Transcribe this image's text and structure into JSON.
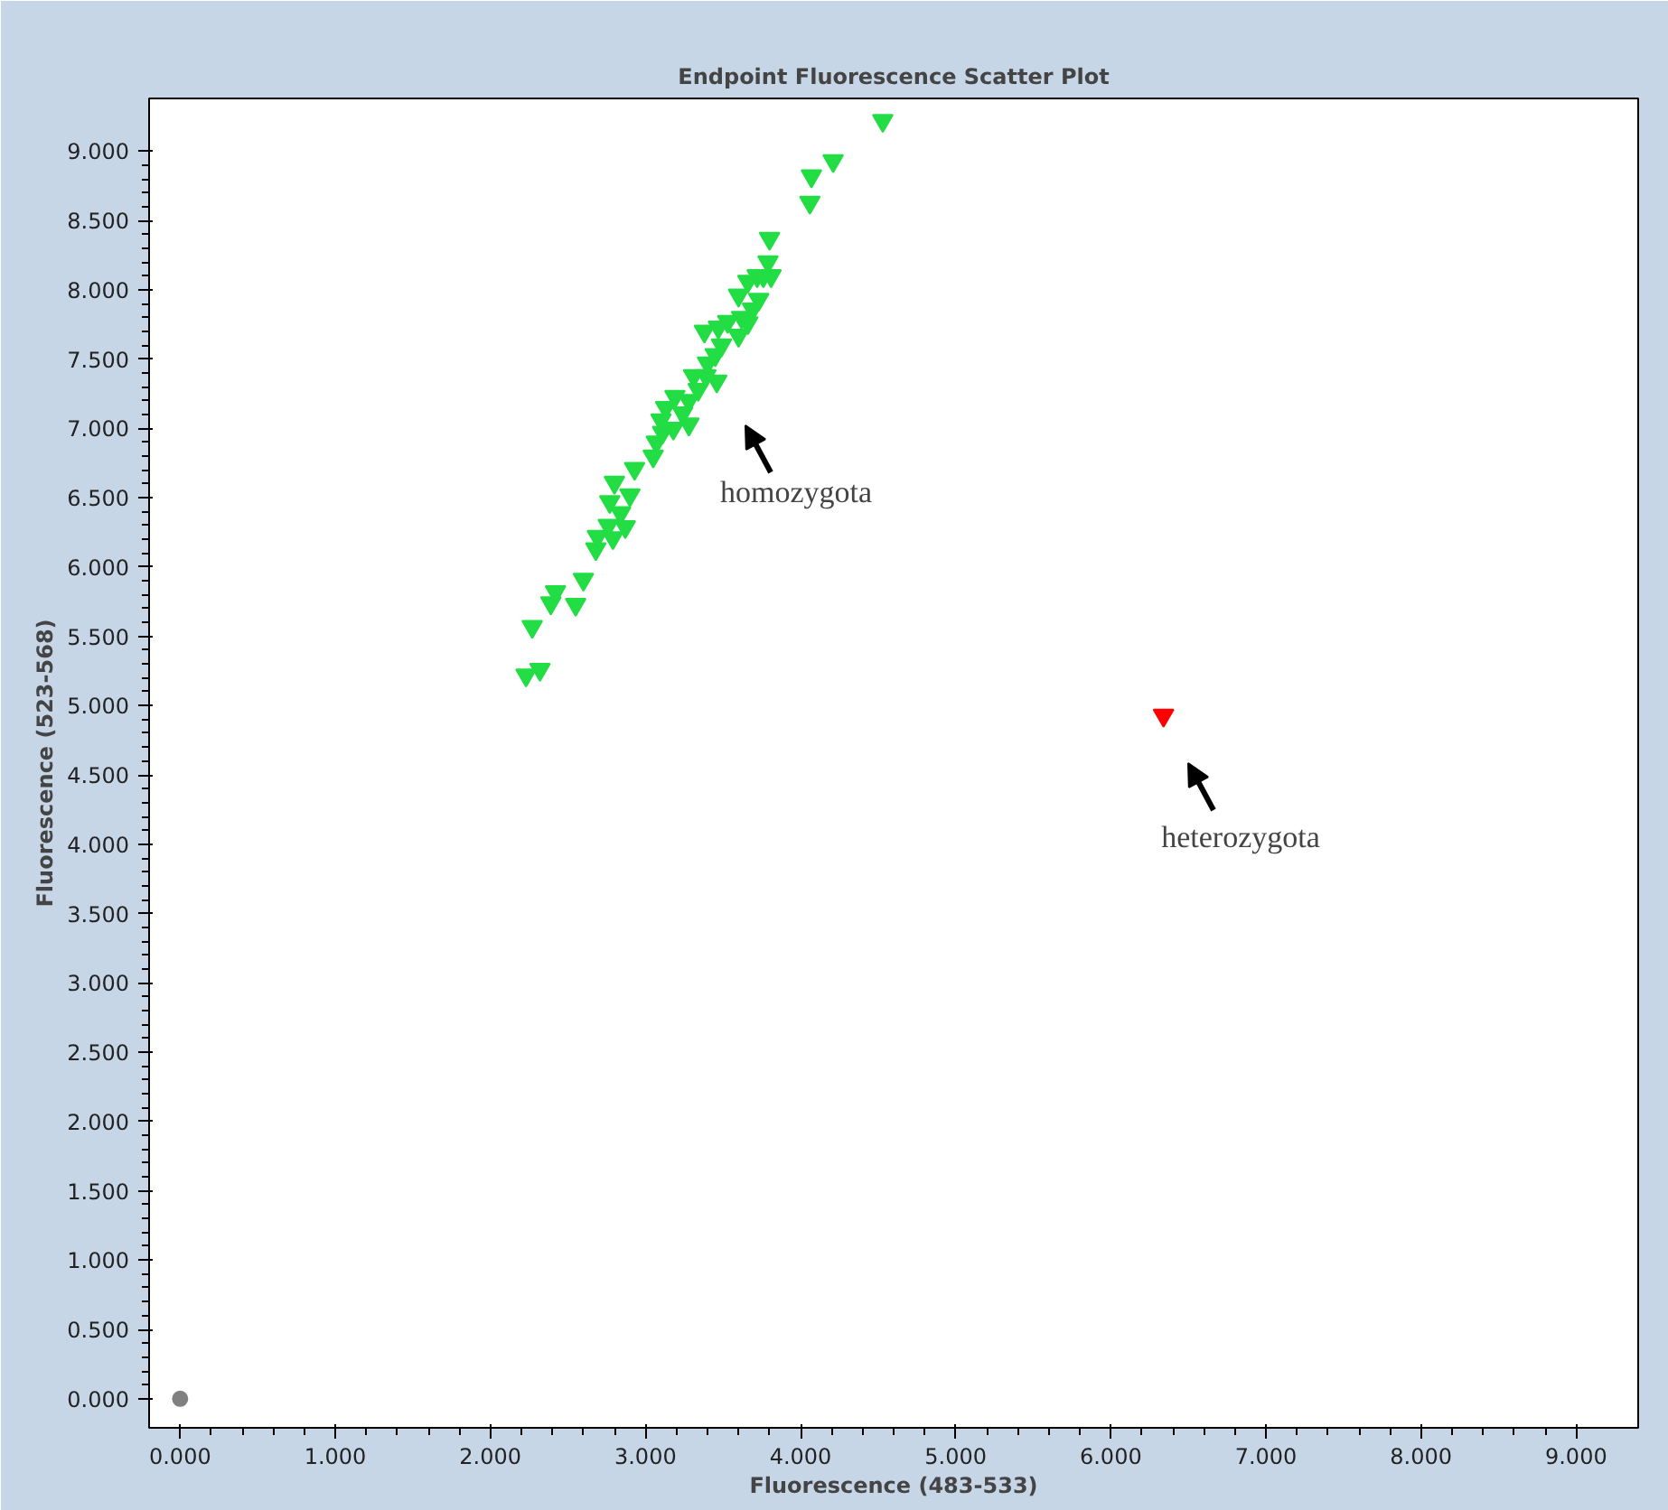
{
  "chart_data": {
    "type": "scatter",
    "title": "Endpoint Fluorescence Scatter Plot",
    "xlabel": "Fluorescence (483-533)",
    "ylabel": "Fluorescence (523-568)",
    "xlim": [
      -0.2,
      9.4
    ],
    "ylim": [
      -0.21,
      9.38
    ],
    "xticks": [
      {
        "value": 0,
        "label": "0.000"
      },
      {
        "value": 1,
        "label": "1.000"
      },
      {
        "value": 2,
        "label": "2.000"
      },
      {
        "value": 3,
        "label": "3.000"
      },
      {
        "value": 4,
        "label": "4.000"
      },
      {
        "value": 5,
        "label": "5.000"
      },
      {
        "value": 6,
        "label": "6.000"
      },
      {
        "value": 7,
        "label": "7.000"
      },
      {
        "value": 8,
        "label": "8.000"
      },
      {
        "value": 9,
        "label": "9.000"
      }
    ],
    "yticks": [
      {
        "value": 0,
        "label": "0.000"
      },
      {
        "value": 0.5,
        "label": "0.500"
      },
      {
        "value": 1,
        "label": "1.000"
      },
      {
        "value": 1.5,
        "label": "1.500"
      },
      {
        "value": 2,
        "label": "2.000"
      },
      {
        "value": 2.5,
        "label": "2.500"
      },
      {
        "value": 3,
        "label": "3.000"
      },
      {
        "value": 3.5,
        "label": "3.500"
      },
      {
        "value": 4,
        "label": "4.000"
      },
      {
        "value": 4.5,
        "label": "4.500"
      },
      {
        "value": 5,
        "label": "5.000"
      },
      {
        "value": 5.5,
        "label": "5.500"
      },
      {
        "value": 6,
        "label": "6.000"
      },
      {
        "value": 6.5,
        "label": "6.500"
      },
      {
        "value": 7,
        "label": "7.000"
      },
      {
        "value": 7.5,
        "label": "7.500"
      },
      {
        "value": 8,
        "label": "8.000"
      },
      {
        "value": 8.5,
        "label": "8.500"
      },
      {
        "value": 9,
        "label": "9.000"
      }
    ],
    "grid": false,
    "series": [
      {
        "color": "#22dd44",
        "marker": "triangle",
        "x": [
          2.23,
          2.32,
          2.27,
          2.39,
          2.42,
          2.55,
          2.6,
          2.68,
          2.69,
          2.76,
          2.79,
          2.87,
          2.84,
          2.77,
          2.8,
          2.9,
          2.93,
          3.05,
          3.07,
          3.11,
          3.1,
          3.18,
          3.13,
          3.19,
          3.24,
          3.28,
          3.28,
          3.34,
          3.31,
          3.39,
          3.4,
          3.46,
          3.45,
          3.38,
          3.47,
          3.53,
          3.49,
          3.6,
          3.62,
          3.66,
          3.6,
          3.66,
          3.72,
          3.76,
          3.69,
          3.73,
          3.81,
          3.79,
          3.8,
          4.06,
          4.07,
          4.21,
          4.53
        ],
        "values": [
          5.22,
          5.26,
          5.57,
          5.74,
          5.82,
          5.73,
          5.91,
          6.13,
          6.22,
          6.3,
          6.21,
          6.29,
          6.39,
          6.47,
          6.61,
          6.52,
          6.71,
          6.8,
          6.9,
          6.97,
          7.06,
          7.0,
          7.15,
          7.23,
          7.11,
          7.03,
          7.2,
          7.28,
          7.38,
          7.38,
          7.47,
          7.34,
          7.53,
          7.7,
          7.73,
          7.77,
          7.6,
          7.67,
          7.8,
          7.76,
          7.96,
          8.06,
          8.1,
          8.1,
          7.86,
          7.93,
          8.1,
          8.2,
          8.37,
          8.63,
          8.82,
          8.93,
          9.22
        ]
      },
      {
        "color": "#ff0000",
        "marker": "triangle",
        "x": [
          6.34
        ],
        "values": [
          4.93
        ]
      },
      {
        "color": "#808080",
        "marker": "circle",
        "x": [
          0.0
        ],
        "values": [
          0.0
        ]
      }
    ],
    "annotations": [
      "homozygota",
      "heterozygota"
    ]
  }
}
